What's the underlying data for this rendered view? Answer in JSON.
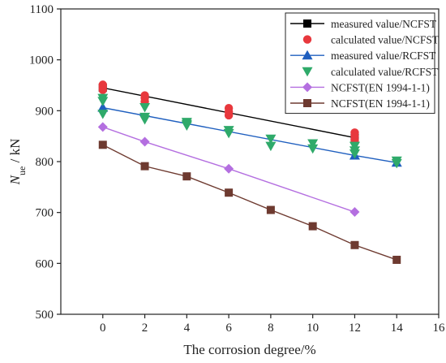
{
  "chart_data": {
    "type": "scatter",
    "title": "",
    "xlabel": "The corrosion degree/%",
    "ylabel_main": "N",
    "ylabel_sub": "ue",
    "ylabel_unit": " / kN",
    "xlim": [
      -2,
      16
    ],
    "ylim": [
      500,
      1100
    ],
    "xticks": [
      0,
      2,
      4,
      6,
      8,
      10,
      12,
      14,
      16
    ],
    "yticks": [
      500,
      600,
      700,
      800,
      900,
      1000,
      1100
    ],
    "grid": false,
    "legend_position": "top-right",
    "series": [
      {
        "name": "measured value/NCFST",
        "color": "#000000",
        "marker": "square",
        "line": true,
        "points": [
          [
            0,
            945
          ],
          [
            12,
            847
          ]
        ]
      },
      {
        "name": "calculated value/NCFST",
        "color": "#e8383d",
        "marker": "circle",
        "line": false,
        "points": [
          [
            0,
            951
          ],
          [
            0,
            946
          ],
          [
            0,
            941
          ],
          [
            2,
            930
          ],
          [
            2,
            925
          ],
          [
            2,
            918
          ],
          [
            6,
            905
          ],
          [
            6,
            898
          ],
          [
            6,
            891
          ],
          [
            12,
            857
          ],
          [
            12,
            850
          ],
          [
            12,
            843
          ],
          [
            12,
            838
          ]
        ]
      },
      {
        "name": "measured value/RCFST",
        "color": "#1f5fbf",
        "marker": "triangle-up",
        "line": true,
        "points": [
          [
            0,
            906
          ],
          [
            12,
            812
          ],
          [
            14,
            798
          ]
        ]
      },
      {
        "name": "calculated value/RCFST",
        "color": "#2faa6a",
        "marker": "triangle-down",
        "line": false,
        "points": [
          [
            0,
            925
          ],
          [
            0,
            919
          ],
          [
            0,
            894
          ],
          [
            2,
            907
          ],
          [
            2,
            888
          ],
          [
            2,
            883
          ],
          [
            4,
            878
          ],
          [
            4,
            874
          ],
          [
            4,
            871
          ],
          [
            6,
            862
          ],
          [
            6,
            856
          ],
          [
            8,
            845
          ],
          [
            8,
            831
          ],
          [
            10,
            836
          ],
          [
            10,
            826
          ],
          [
            12,
            831
          ],
          [
            12,
            822
          ],
          [
            12,
            816
          ],
          [
            14,
            802
          ],
          [
            14,
            797
          ]
        ]
      },
      {
        "name": "NCFST(EN 1994-1-1)",
        "color": "#b46fe0",
        "marker": "diamond",
        "line": true,
        "points": [
          [
            0,
            868
          ],
          [
            2,
            839
          ],
          [
            6,
            786
          ],
          [
            12,
            701
          ]
        ]
      },
      {
        "name": "NCFST(EN 1994-1-1)",
        "color": "#6e3a30",
        "marker": "square",
        "line": true,
        "points": [
          [
            0,
            833
          ],
          [
            2,
            791
          ],
          [
            4,
            771
          ],
          [
            6,
            739
          ],
          [
            8,
            705
          ],
          [
            10,
            673
          ],
          [
            12,
            636
          ],
          [
            14,
            607
          ]
        ]
      }
    ]
  }
}
